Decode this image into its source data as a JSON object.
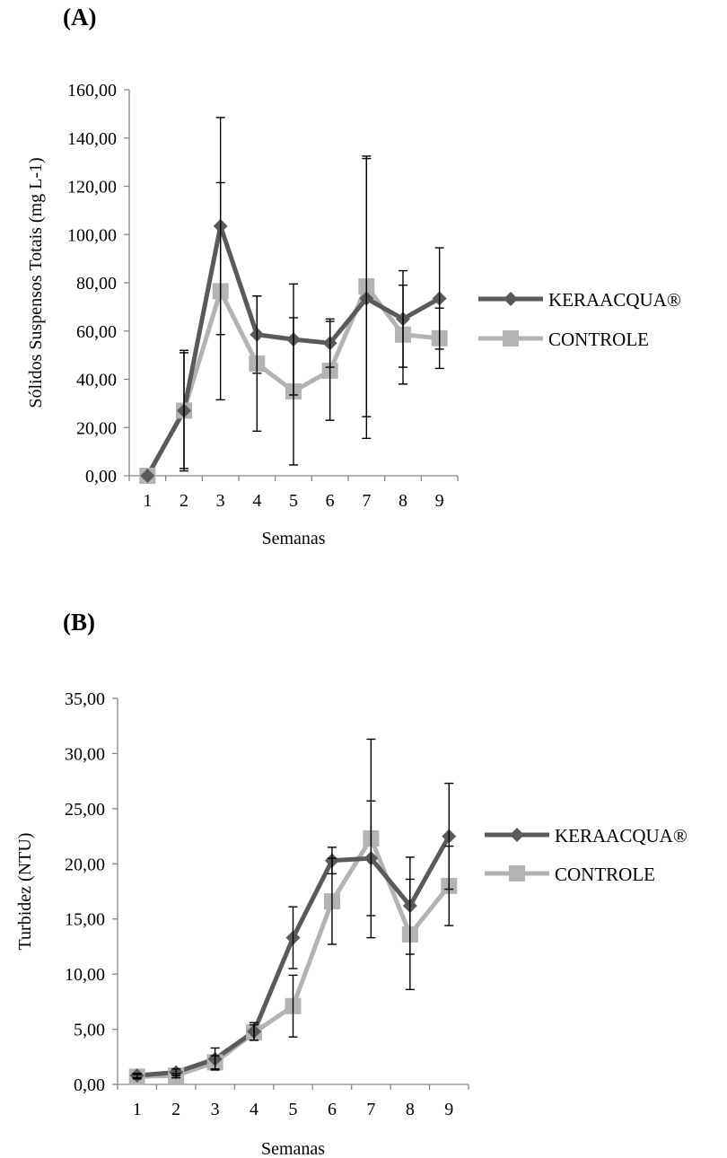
{
  "colors": {
    "keraacqua": "#5a5a5a",
    "controle": "#b3b3b3",
    "axis": "#868686",
    "error_bar": "#000000"
  },
  "chart_data": [
    {
      "panel_label": "(A)",
      "type": "line",
      "xlabel": "Semanas",
      "ylabel": "Sólidos Suspensos Totais (mg L-1)",
      "ylim": [
        0,
        160
      ],
      "yticks": [
        "0,00",
        "20,00",
        "40,00",
        "60,00",
        "80,00",
        "100,00",
        "120,00",
        "140,00",
        "160,00"
      ],
      "categories": [
        "1",
        "2",
        "3",
        "4",
        "5",
        "6",
        "7",
        "8",
        "9"
      ],
      "grid": false,
      "legend_position": "right",
      "series": [
        {
          "name": "KERAACQUA®",
          "marker": "diamond",
          "values": [
            0,
            27,
            103.5,
            58.5,
            56.5,
            55,
            73.5,
            65,
            73.5
          ],
          "error": [
            0,
            24,
            45,
            16,
            23,
            10,
            58,
            20,
            21
          ]
        },
        {
          "name": "CONTROLE",
          "marker": "square",
          "values": [
            0,
            27,
            76.5,
            46.5,
            35,
            43.5,
            78.5,
            58.5,
            57
          ],
          "error": [
            0,
            25,
            45,
            28,
            30.5,
            20.5,
            54,
            20.5,
            12.5
          ]
        }
      ]
    },
    {
      "panel_label": "(B)",
      "type": "line",
      "xlabel": "Semanas",
      "ylabel": "Turbidez (NTU)",
      "ylim": [
        0,
        35
      ],
      "yticks": [
        "0,00",
        "5,00",
        "10,00",
        "15,00",
        "20,00",
        "25,00",
        "30,00",
        "35,00"
      ],
      "categories": [
        "1",
        "2",
        "3",
        "4",
        "5",
        "6",
        "7",
        "8",
        "9"
      ],
      "grid": false,
      "legend_position": "right",
      "series": [
        {
          "name": "KERAACQUA®",
          "marker": "diamond",
          "values": [
            0.8,
            1.1,
            2.3,
            4.8,
            13.3,
            20.3,
            20.5,
            16.2,
            22.5
          ],
          "error": [
            0.2,
            0.3,
            1.0,
            0.8,
            2.8,
            1.2,
            5.2,
            4.4,
            4.8
          ]
        },
        {
          "name": "CONTROLE",
          "marker": "square",
          "values": [
            0.7,
            0.8,
            2.0,
            4.7,
            7.1,
            16.6,
            22.3,
            13.6,
            18.0
          ],
          "error": [
            0.2,
            0.2,
            0.6,
            0.7,
            2.8,
            3.9,
            9.0,
            5.0,
            3.6
          ]
        }
      ]
    }
  ]
}
